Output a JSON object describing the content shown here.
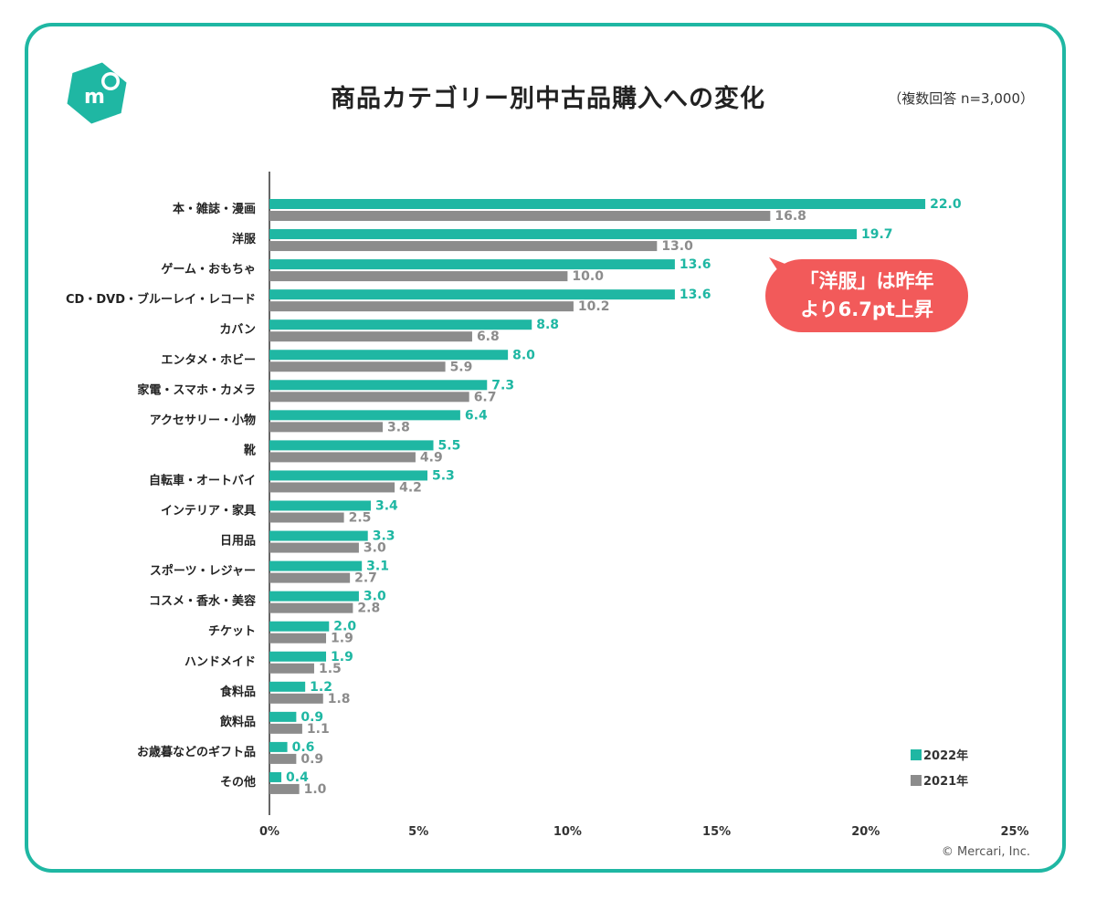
{
  "header": {
    "title": "商品カテゴリー別中古品購入への変化",
    "note": "（複数回答 n=3,000）"
  },
  "callout": {
    "line1": "「洋服」は昨年",
    "line2": "より6.7pt上昇"
  },
  "credit": "© Mercari, Inc.",
  "logo": {
    "name": "mercari-logo",
    "glyph": "m"
  },
  "colors": {
    "y2022": "#1fb7a3",
    "y2021": "#8c8c8c",
    "callout": "#f25a5a",
    "frame": "#1fb7a3"
  },
  "chart_data": {
    "type": "bar",
    "orientation": "horizontal",
    "title": "商品カテゴリー別中古品購入への変化",
    "categories": [
      "本・雑誌・漫画",
      "洋服",
      "ゲーム・おもちゃ",
      "CD・DVD・ブルーレイ・レコード",
      "カバン",
      "エンタメ・ホビー",
      "家電・スマホ・カメラ",
      "アクセサリー・小物",
      "靴",
      "自転車・オートバイ",
      "インテリア・家具",
      "日用品",
      "スポーツ・レジャー",
      "コスメ・香水・美容",
      "チケット",
      "ハンドメイド",
      "食料品",
      "飲料品",
      "お歳暮などのギフト品",
      "その他"
    ],
    "series": [
      {
        "name": "2022年",
        "color": "#1fb7a3",
        "values": [
          22.0,
          19.7,
          13.6,
          13.6,
          8.8,
          8.0,
          7.3,
          6.4,
          5.5,
          5.3,
          3.4,
          3.3,
          3.1,
          3.0,
          2.0,
          1.9,
          1.2,
          0.9,
          0.6,
          0.4
        ]
      },
      {
        "name": "2021年",
        "color": "#8c8c8c",
        "values": [
          16.8,
          13.0,
          10.0,
          10.2,
          6.8,
          5.9,
          6.7,
          3.8,
          4.9,
          4.2,
          2.5,
          3.0,
          2.7,
          2.8,
          1.9,
          1.5,
          1.8,
          1.1,
          0.9,
          1.0
        ]
      }
    ],
    "xlim": [
      0,
      25
    ],
    "xticks": [
      "0%",
      "5%",
      "10%",
      "15%",
      "20%",
      "25%"
    ],
    "xticks_values": [
      0,
      5,
      10,
      15,
      20,
      25
    ],
    "legend": "bottom-right",
    "grid": false
  }
}
